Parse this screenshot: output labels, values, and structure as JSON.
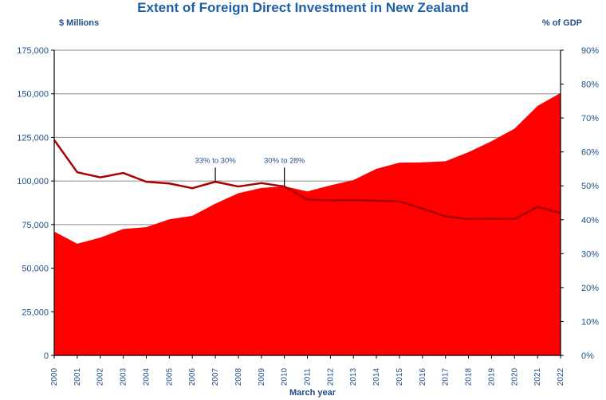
{
  "chart_data": {
    "type": "area",
    "title": "Extent of Foreign Direct Investment in New Zealand",
    "y_left_label": "$ Millions",
    "y_right_label": "% of GDP",
    "xlabel": "March year",
    "categories": [
      "2000",
      "2001",
      "2002",
      "2003",
      "2004",
      "2005",
      "2006",
      "2007",
      "2008",
      "2009",
      "2010",
      "2011",
      "2012",
      "2013",
      "2014",
      "2015",
      "2016",
      "2017",
      "2018",
      "2019",
      "2020",
      "2021",
      "2022"
    ],
    "ylim_left": [
      0,
      175000
    ],
    "ylim_right": [
      0,
      90
    ],
    "y_left_ticks": [
      "0",
      "25,000",
      "50,000",
      "75,000",
      "100,000",
      "125,000",
      "150,000",
      "175,000"
    ],
    "y_right_ticks": [
      "0%",
      "10%",
      "20%",
      "30%",
      "40%",
      "50%",
      "60%",
      "70%",
      "80%",
      "90%"
    ],
    "grid": true,
    "series": [
      {
        "type": "area",
        "axis": "left",
        "color": "#ff0000",
        "values": [
          71000,
          64000,
          67500,
          72500,
          73500,
          78000,
          80000,
          87000,
          93000,
          96000,
          97000,
          94000,
          97500,
          100500,
          107000,
          110500,
          110700,
          111300,
          116500,
          122800,
          130000,
          143000,
          150500
        ]
      },
      {
        "type": "line",
        "axis": "right",
        "color": "#a80000",
        "values": [
          63.5,
          54,
          52.5,
          53.8,
          51.2,
          50.7,
          49.3,
          51.2,
          49.8,
          50.8,
          49.8,
          46,
          45.7,
          45.8,
          45.6,
          45.4,
          43.3,
          41,
          40.2,
          40.3,
          40.2,
          43.8,
          42
        ]
      }
    ],
    "annotations": [
      {
        "text": "33% to 30%",
        "year": "2007"
      },
      {
        "text": "30% to 28%",
        "year": "2010"
      }
    ]
  }
}
